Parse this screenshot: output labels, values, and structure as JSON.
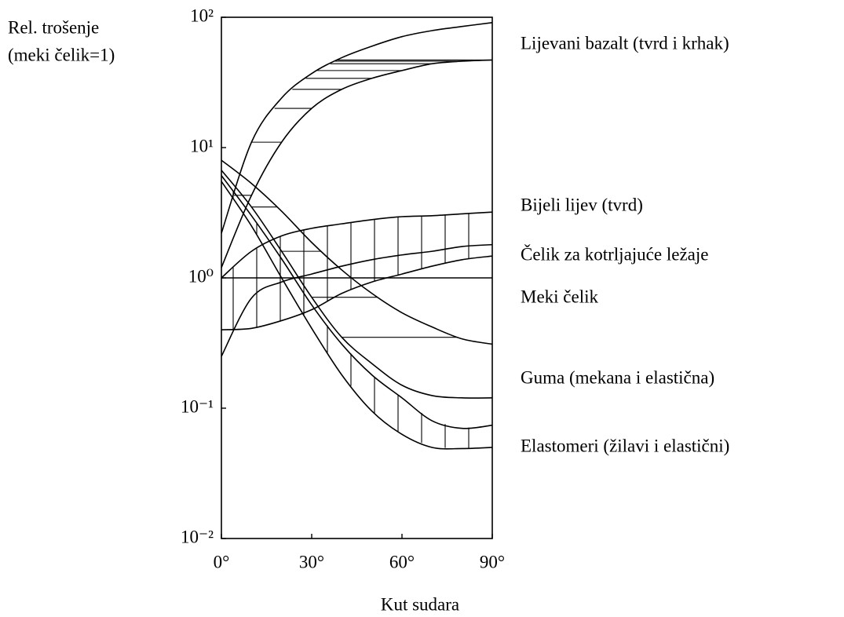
{
  "chart_data": {
    "type": "band",
    "ylabel": [
      "Rel. trošenje",
      "(meki čelik=1)"
    ],
    "xlabel": "Kut sudara",
    "log_y": true,
    "xlim": [
      0,
      90
    ],
    "ylim": [
      0.01,
      100
    ],
    "xticks": [
      {
        "value": 0,
        "label": "0°"
      },
      {
        "value": 30,
        "label": "30°"
      },
      {
        "value": 60,
        "label": "60°"
      },
      {
        "value": 90,
        "label": "90°"
      }
    ],
    "yticks": [
      {
        "value": 0.01,
        "label": "10⁻²"
      },
      {
        "value": 0.1,
        "label": "10⁻¹"
      },
      {
        "value": 1,
        "label": "10⁰"
      },
      {
        "value": 10,
        "label": "10¹"
      },
      {
        "value": 100,
        "label": "10²"
      }
    ],
    "x": [
      0,
      10,
      20,
      30,
      40,
      50,
      60,
      70,
      80,
      90
    ],
    "series": [
      {
        "name": "Lijevani bazalt (tvrd i krhak)",
        "color": "#000000",
        "hatch": "horizontal",
        "values": [
          2.2,
          11,
          24,
          37,
          49,
          60,
          71,
          79,
          85,
          91
        ],
        "lower": [
          1.2,
          4.3,
          11,
          20,
          28,
          34,
          39,
          44,
          46,
          47
        ]
      },
      {
        "name": "Bijeli lijev (tvrd)",
        "color": "#000000",
        "hatch": "vertical",
        "values": [
          1.0,
          1.6,
          2.1,
          2.4,
          2.6,
          2.8,
          2.95,
          3.0,
          3.1,
          3.2
        ],
        "lower": [
          0.4,
          0.41,
          0.47,
          0.57,
          0.76,
          0.93,
          1.07,
          1.23,
          1.38,
          1.47
        ]
      },
      {
        "name": "Čelik za kotrljajuće ležaje",
        "color": "#000000",
        "values": [
          0.25,
          0.7,
          0.93,
          1.07,
          1.23,
          1.38,
          1.5,
          1.6,
          1.74,
          1.8
        ]
      },
      {
        "name": "Meki čelik",
        "color": "#000000",
        "values": [
          1,
          1,
          1,
          1,
          1,
          1,
          1,
          1,
          1,
          1
        ]
      },
      {
        "name": "Guma (mekana i elastična)",
        "color": "#000000",
        "hatch": "horizontal",
        "values": [
          8,
          5.3,
          3.25,
          1.87,
          1.15,
          0.76,
          0.54,
          0.42,
          0.34,
          0.31
        ],
        "lower": [
          6.7,
          3.5,
          1.6,
          0.71,
          0.35,
          0.22,
          0.15,
          0.125,
          0.12,
          0.12
        ]
      },
      {
        "name": "Elastomeri (žilavi i elastični)",
        "color": "#000000",
        "hatch": "vertical",
        "values": [
          6.1,
          3.0,
          1.4,
          0.62,
          0.31,
          0.18,
          0.12,
          0.08,
          0.07,
          0.074
        ],
        "lower": [
          5.5,
          2.5,
          1.0,
          0.41,
          0.18,
          0.095,
          0.063,
          0.05,
          0.049,
          0.05
        ]
      }
    ]
  }
}
